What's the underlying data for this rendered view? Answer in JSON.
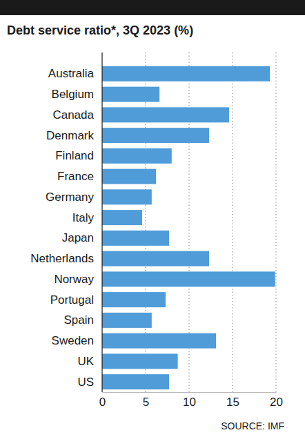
{
  "chart_data": {
    "type": "bar",
    "orientation": "horizontal",
    "title": "Debt service ratio*, 3Q 2023 (%)",
    "source": "SOURCE: IMF",
    "categories": [
      "Australia",
      "Belgium",
      "Canada",
      "Denmark",
      "Finland",
      "France",
      "Germany",
      "Italy",
      "Japan",
      "Netherlands",
      "Norway",
      "Portugal",
      "Spain",
      "Sweden",
      "UK",
      "US"
    ],
    "values": [
      19.3,
      6.6,
      14.6,
      12.3,
      8.0,
      6.2,
      5.7,
      4.6,
      7.7,
      12.3,
      19.9,
      7.3,
      5.7,
      13.1,
      8.7,
      7.7
    ],
    "color": "#4f9cd9",
    "xlim": [
      0,
      20
    ],
    "xticks": [
      0,
      5,
      10,
      15,
      20
    ],
    "grid": true
  }
}
